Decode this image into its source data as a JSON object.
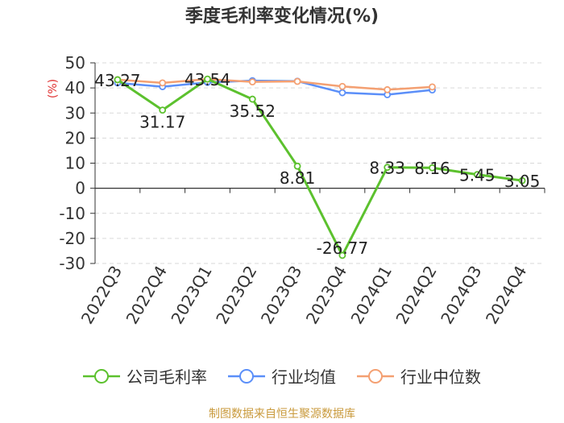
{
  "chart_data": {
    "type": "line",
    "title": "季度毛利率变化情况(%)",
    "ylabel": "(%)",
    "xlabel": "",
    "ylim": [
      -30,
      50
    ],
    "yticks": [
      -30,
      -20,
      -10,
      0,
      10,
      20,
      30,
      40,
      50
    ],
    "grid": true,
    "legend_position": "bottom",
    "categories": [
      "2022Q3",
      "2022Q4",
      "2023Q1",
      "2023Q2",
      "2023Q3",
      "2023Q4",
      "2024Q1",
      "2024Q2",
      "2024Q3",
      "2024Q4"
    ],
    "series": [
      {
        "name": "公司毛利率",
        "color": "#5cc12e",
        "values": [
          43.27,
          31.17,
          43.54,
          35.52,
          8.81,
          -26.77,
          8.33,
          8.16,
          5.45,
          3.05
        ],
        "labels": [
          "43.27",
          "31.17",
          "43.54",
          "35.52",
          "8.81",
          "-26.77",
          "8.33",
          "8.16",
          "5.45",
          "3.05"
        ]
      },
      {
        "name": "行业均值",
        "color": "#5b8ff9",
        "values": [
          42.0,
          40.5,
          42.2,
          42.9,
          42.7,
          38.1,
          37.3,
          39.2,
          null,
          null
        ]
      },
      {
        "name": "行业中位数",
        "color": "#f4a072",
        "values": [
          43.3,
          42.0,
          43.5,
          42.4,
          42.6,
          40.6,
          39.3,
          40.4,
          null,
          null
        ]
      }
    ],
    "source": "制图数据来自恒生聚源数据库"
  }
}
